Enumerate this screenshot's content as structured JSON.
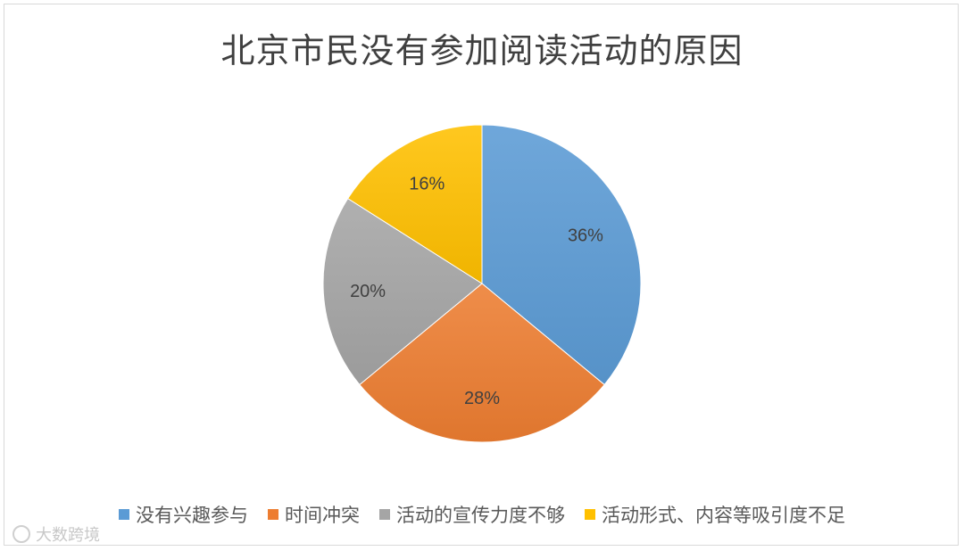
{
  "chart_data": {
    "type": "pie",
    "title": "北京市民没有参加阅读活动的原因",
    "categories": [
      "没有兴趣参与",
      "时间冲突",
      "活动的宣传力度不够",
      "活动形式、内容等吸引度不足"
    ],
    "values": [
      36,
      28,
      20,
      16
    ],
    "data_labels": [
      "36%",
      "28%",
      "20%",
      "16%"
    ],
    "colors": [
      "#5b9bd5",
      "#ed7d31",
      "#a5a5a5",
      "#ffc000"
    ],
    "start_angle": "12 o'clock",
    "direction": "clockwise",
    "legend_position": "bottom"
  },
  "watermark": {
    "text": "大数跨境"
  }
}
